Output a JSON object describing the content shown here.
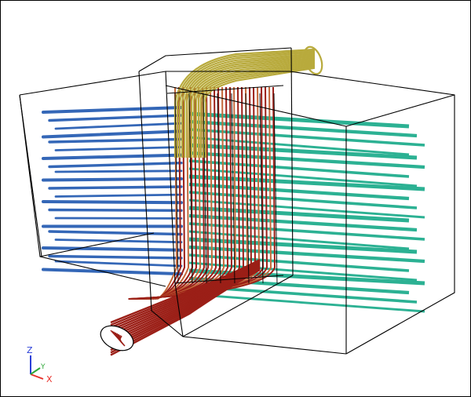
{
  "viewer": {
    "background": "#ffffff",
    "frame_color": "#000000"
  },
  "axes_triad": {
    "x_label": "X",
    "y_label": "Y",
    "z_label": "Z",
    "x_color": "#e8312b",
    "y_color": "#2fa83a",
    "z_color": "#2a3fd8"
  },
  "streamlines": {
    "families": [
      {
        "name": "left-box-streamlines",
        "color": "#2a5fb4"
      },
      {
        "name": "right-box-streamlines",
        "color": "#21ad8e"
      },
      {
        "name": "inlet-pipe-streamlines",
        "color": "#9b1f17"
      },
      {
        "name": "vertical-core-streamlines",
        "color": "#c4683a"
      },
      {
        "name": "outlet-pipe-streamlines",
        "color": "#b8aa3c"
      }
    ]
  }
}
